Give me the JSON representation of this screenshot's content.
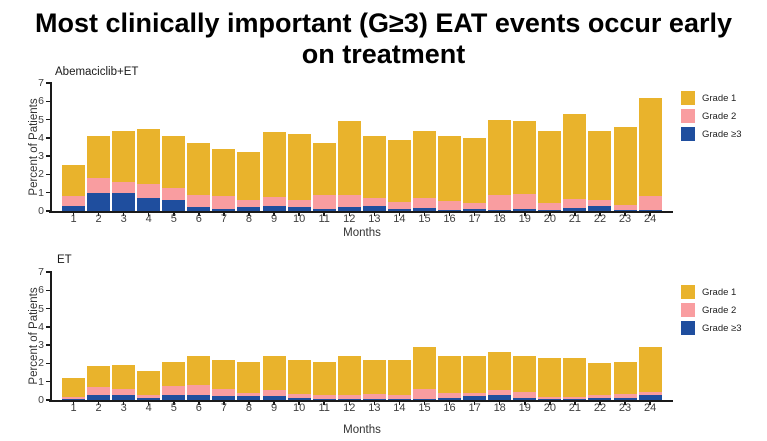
{
  "title": "Most clinically important (G≥3) EAT events occur early on treatment",
  "colors": {
    "grade1": "#E9B32C",
    "grade2": "#F99DA0",
    "grade3": "#1F4E9E",
    "axis": "#1a1a1a"
  },
  "legend": [
    {
      "label": "Grade 1",
      "color_key": "grade1"
    },
    {
      "label": "Grade 2",
      "color_key": "grade2"
    },
    {
      "label": "Grade ≥3",
      "color_key": "grade3"
    }
  ],
  "chart_data": [
    {
      "type": "bar",
      "stacked": true,
      "panel_label": "Abemaciclib+ET",
      "xlabel": "Months",
      "ylabel": "Percent of Patients",
      "ylim": [
        0,
        7
      ],
      "yticks": [
        0,
        1,
        2,
        3,
        4,
        5,
        6,
        7
      ],
      "grid": false,
      "legend_position": "right",
      "categories": [
        1,
        2,
        3,
        4,
        5,
        6,
        7,
        8,
        9,
        10,
        11,
        12,
        13,
        14,
        15,
        16,
        17,
        18,
        19,
        20,
        21,
        22,
        23,
        24
      ],
      "series": [
        {
          "name": "Grade 1",
          "color_key": "grade1",
          "values": [
            1.7,
            2.3,
            2.8,
            3.0,
            2.85,
            2.85,
            2.6,
            2.6,
            3.55,
            3.6,
            2.85,
            4.05,
            3.4,
            3.4,
            3.7,
            3.55,
            3.55,
            4.15,
            3.95,
            3.95,
            4.65,
            3.8,
            4.25,
            5.4
          ]
        },
        {
          "name": "Grade 2",
          "color_key": "grade2",
          "values": [
            0.5,
            0.8,
            0.6,
            0.8,
            0.65,
            0.65,
            0.7,
            0.4,
            0.45,
            0.4,
            0.75,
            0.65,
            0.45,
            0.4,
            0.55,
            0.48,
            0.35,
            0.8,
            0.85,
            0.4,
            0.47,
            0.3,
            0.3,
            0.75
          ]
        },
        {
          "name": "Grade ≥3",
          "color_key": "grade3",
          "values": [
            0.3,
            1.0,
            1.0,
            0.7,
            0.6,
            0.2,
            0.1,
            0.2,
            0.3,
            0.2,
            0.1,
            0.2,
            0.25,
            0.1,
            0.15,
            0.07,
            0.1,
            0.05,
            0.1,
            0.05,
            0.18,
            0.3,
            0.05,
            0.05
          ]
        }
      ],
      "totals": [
        2.5,
        4.1,
        4.4,
        4.5,
        4.1,
        3.7,
        3.4,
        3.2,
        4.3,
        4.2,
        3.7,
        4.9,
        4.1,
        3.9,
        4.4,
        4.1,
        4.0,
        5.0,
        4.9,
        4.4,
        5.3,
        4.4,
        4.6,
        6.2
      ]
    },
    {
      "type": "bar",
      "stacked": true,
      "panel_label": "ET",
      "xlabel": "Months",
      "ylabel": "Percent of Patients",
      "ylim": [
        0,
        7
      ],
      "yticks": [
        0,
        1,
        2,
        3,
        4,
        5,
        6,
        7
      ],
      "grid": false,
      "legend_position": "right",
      "categories": [
        1,
        2,
        3,
        4,
        5,
        6,
        7,
        8,
        9,
        10,
        11,
        12,
        13,
        14,
        15,
        16,
        17,
        18,
        19,
        20,
        21,
        22,
        23,
        24
      ],
      "series": [
        {
          "name": "Grade 1",
          "color_key": "grade1",
          "values": [
            1.03,
            1.15,
            1.3,
            1.3,
            1.35,
            1.6,
            1.6,
            1.7,
            1.85,
            1.85,
            1.8,
            2.1,
            1.87,
            1.92,
            2.3,
            2.0,
            2.0,
            2.05,
            1.95,
            2.15,
            2.13,
            1.7,
            1.77,
            2.45
          ]
        },
        {
          "name": "Grade 2",
          "color_key": "grade2",
          "values": [
            0.1,
            0.45,
            0.32,
            0.2,
            0.5,
            0.52,
            0.4,
            0.2,
            0.35,
            0.25,
            0.23,
            0.25,
            0.28,
            0.23,
            0.53,
            0.3,
            0.18,
            0.27,
            0.35,
            0.1,
            0.1,
            0.2,
            0.23,
            0.15
          ]
        },
        {
          "name": "Grade ≥3",
          "color_key": "grade3",
          "values": [
            0.07,
            0.25,
            0.28,
            0.1,
            0.25,
            0.28,
            0.2,
            0.2,
            0.2,
            0.1,
            0.07,
            0.05,
            0.05,
            0.05,
            0.07,
            0.1,
            0.22,
            0.28,
            0.1,
            0.05,
            0.07,
            0.1,
            0.1,
            0.3
          ]
        }
      ],
      "totals": [
        1.2,
        1.85,
        1.9,
        1.6,
        2.1,
        2.4,
        2.2,
        2.1,
        2.4,
        2.2,
        2.1,
        2.4,
        2.2,
        2.2,
        2.9,
        2.4,
        2.4,
        2.6,
        2.4,
        2.3,
        2.3,
        2.0,
        2.1,
        2.9
      ]
    }
  ]
}
